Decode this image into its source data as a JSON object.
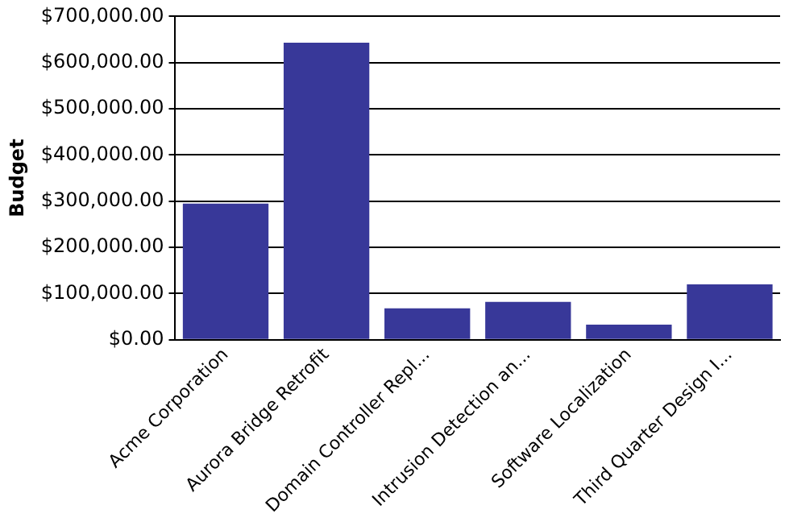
{
  "chart_data": {
    "type": "bar",
    "ylabel": "Budget",
    "categories": [
      "Acme Corporation",
      "Aurora Bridge Retrofit",
      "Domain Controller Repl...",
      "Intrusion Detection an...",
      "Software Localization",
      "Third Quarter Design I..."
    ],
    "values": [
      295000,
      643000,
      68000,
      82000,
      33000,
      120000
    ],
    "color": "#383899",
    "ylim": [
      0,
      700000
    ],
    "yticks": [
      {
        "value": 0,
        "label": "$0.00"
      },
      {
        "value": 100000,
        "label": "$100,000.00"
      },
      {
        "value": 200000,
        "label": "$200,000.00"
      },
      {
        "value": 300000,
        "label": "$300,000.00"
      },
      {
        "value": 400000,
        "label": "$400,000.00"
      },
      {
        "value": 500000,
        "label": "$500,000.00"
      },
      {
        "value": 600000,
        "label": "$600,000.00"
      },
      {
        "value": 700000,
        "label": "$700,000.00"
      }
    ],
    "grid": "y"
  }
}
